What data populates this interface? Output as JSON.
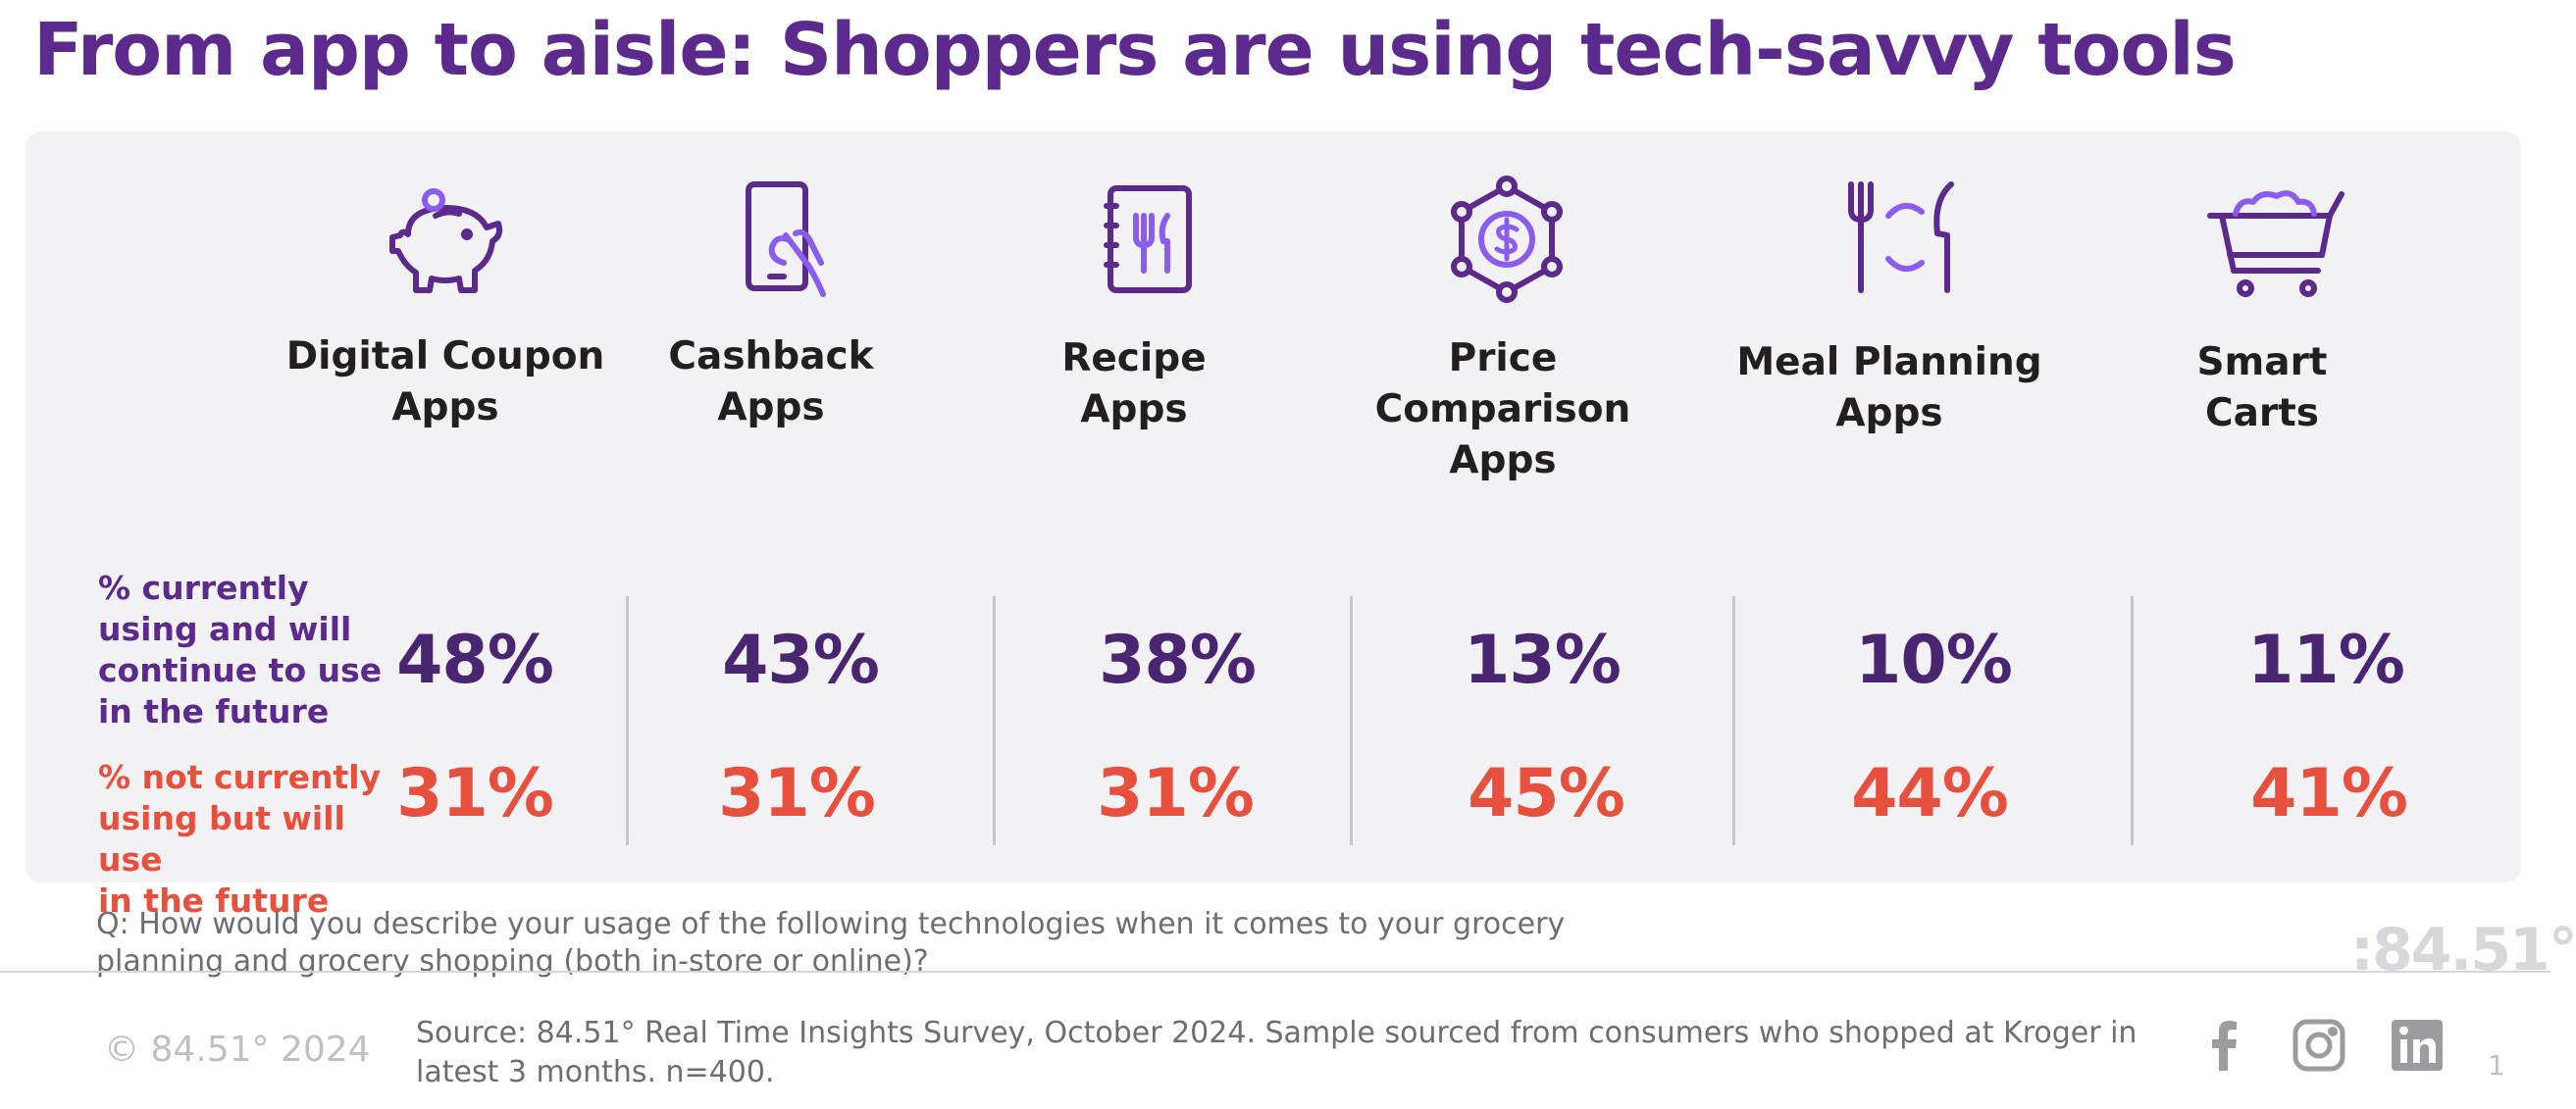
{
  "title": "From app to aisle: Shoppers are using tech-savvy tools",
  "colors": {
    "title": "#5b2a8c",
    "currently_using": "#4a2572",
    "future_use": "#e8503e",
    "icon_purple": "#5b2a8c",
    "icon_accent": "#8a5cf0",
    "panel_bg": "#f2f2f4"
  },
  "chart_data": {
    "type": "table",
    "title": "From app to aisle: Shoppers are using tech-savvy tools",
    "categories": [
      "Digital Coupon Apps",
      "Cashback Apps",
      "Recipe Apps",
      "Price Comparison Apps",
      "Meal Planning Apps",
      "Smart Carts"
    ],
    "series": [
      {
        "name": "% currently using and will continue to use in the future",
        "values": [
          48,
          43,
          38,
          13,
          10,
          11
        ],
        "display": [
          "48%",
          "43%",
          "38%",
          "13%",
          "10%",
          "11%"
        ]
      },
      {
        "name": "% not currently using but will use in the future",
        "values": [
          31,
          31,
          31,
          45,
          44,
          41
        ],
        "display": [
          "31%",
          "31%",
          "31%",
          "45%",
          "44%",
          "41%"
        ]
      }
    ],
    "unit": "%"
  },
  "categories": [
    {
      "line1": "Digital Coupon",
      "line2": "Apps",
      "icon": "piggy-bank-icon"
    },
    {
      "line1": "Cashback",
      "line2": "Apps",
      "icon": "phone-tap-icon"
    },
    {
      "line1": "Recipe",
      "line2": "Apps",
      "icon": "recipe-book-icon"
    },
    {
      "line1": "Price Comparison",
      "line2": "Apps",
      "icon": "price-network-icon"
    },
    {
      "line1": "Meal Planning",
      "line2": "Apps",
      "icon": "plate-utensils-icon"
    },
    {
      "line1": "Smart",
      "line2": "Carts",
      "icon": "shopping-cart-icon"
    }
  ],
  "row_labels": {
    "current": [
      "% currently",
      "using and will",
      "continue to use",
      "in the future"
    ],
    "future": [
      "% not currently",
      "using but will use",
      "in the future"
    ]
  },
  "question": "Q: How would you describe your usage of the following technologies when it comes to your grocery planning and grocery shopping (both in-store or online)?",
  "watermark": ":84.51°",
  "footer": {
    "copyright": "© 84.51°  2024",
    "source": "Source:  84.51° Real Time Insights Survey, October 2024. Sample sourced from consumers who shopped at Kroger in latest 3 months. n=400.",
    "social": [
      "facebook-icon",
      "instagram-icon",
      "linkedin-icon"
    ],
    "page_number": "1"
  }
}
